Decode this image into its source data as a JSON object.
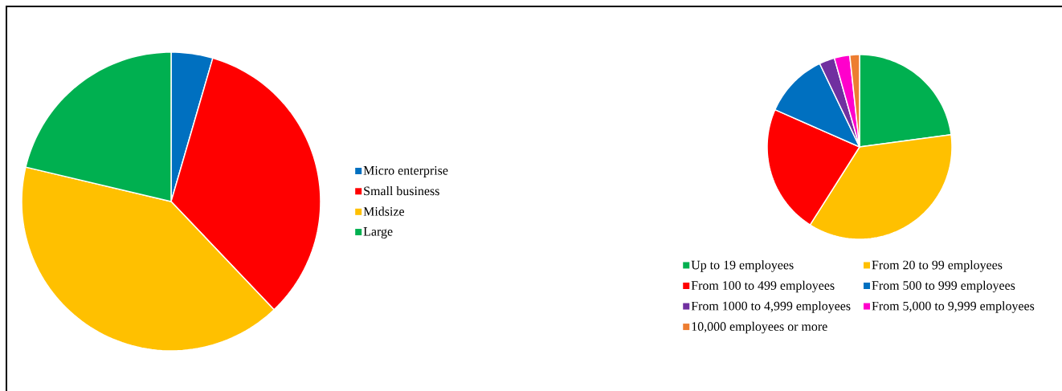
{
  "chart_data": [
    {
      "type": "pie",
      "categories": [
        "Micro enterprise",
        "Small business",
        "Midsize",
        "Large"
      ],
      "values": [
        4.5,
        33.4,
        40.8,
        21.3
      ],
      "colors": [
        "#0070c0",
        "#ff0000",
        "#ffc000",
        "#00b050"
      ],
      "legend": "right"
    },
    {
      "type": "pie",
      "categories": [
        "Up to 19 employees",
        "From 20 to 99 employees",
        "From 100 to 499 employees",
        "From 500 to 999 employees",
        "From 1000 to 4,999 employees",
        "From 5,000 to 9,999 employees",
        "10,000 employees or more"
      ],
      "values": [
        22.9,
        36.1,
        22.6,
        11.3,
        2.7,
        2.7,
        1.7
      ],
      "colors": [
        "#00b050",
        "#ffc000",
        "#ff0000",
        "#0070c0",
        "#7030a0",
        "#ff00cc",
        "#ed7d31"
      ],
      "legend": "bottom"
    }
  ]
}
